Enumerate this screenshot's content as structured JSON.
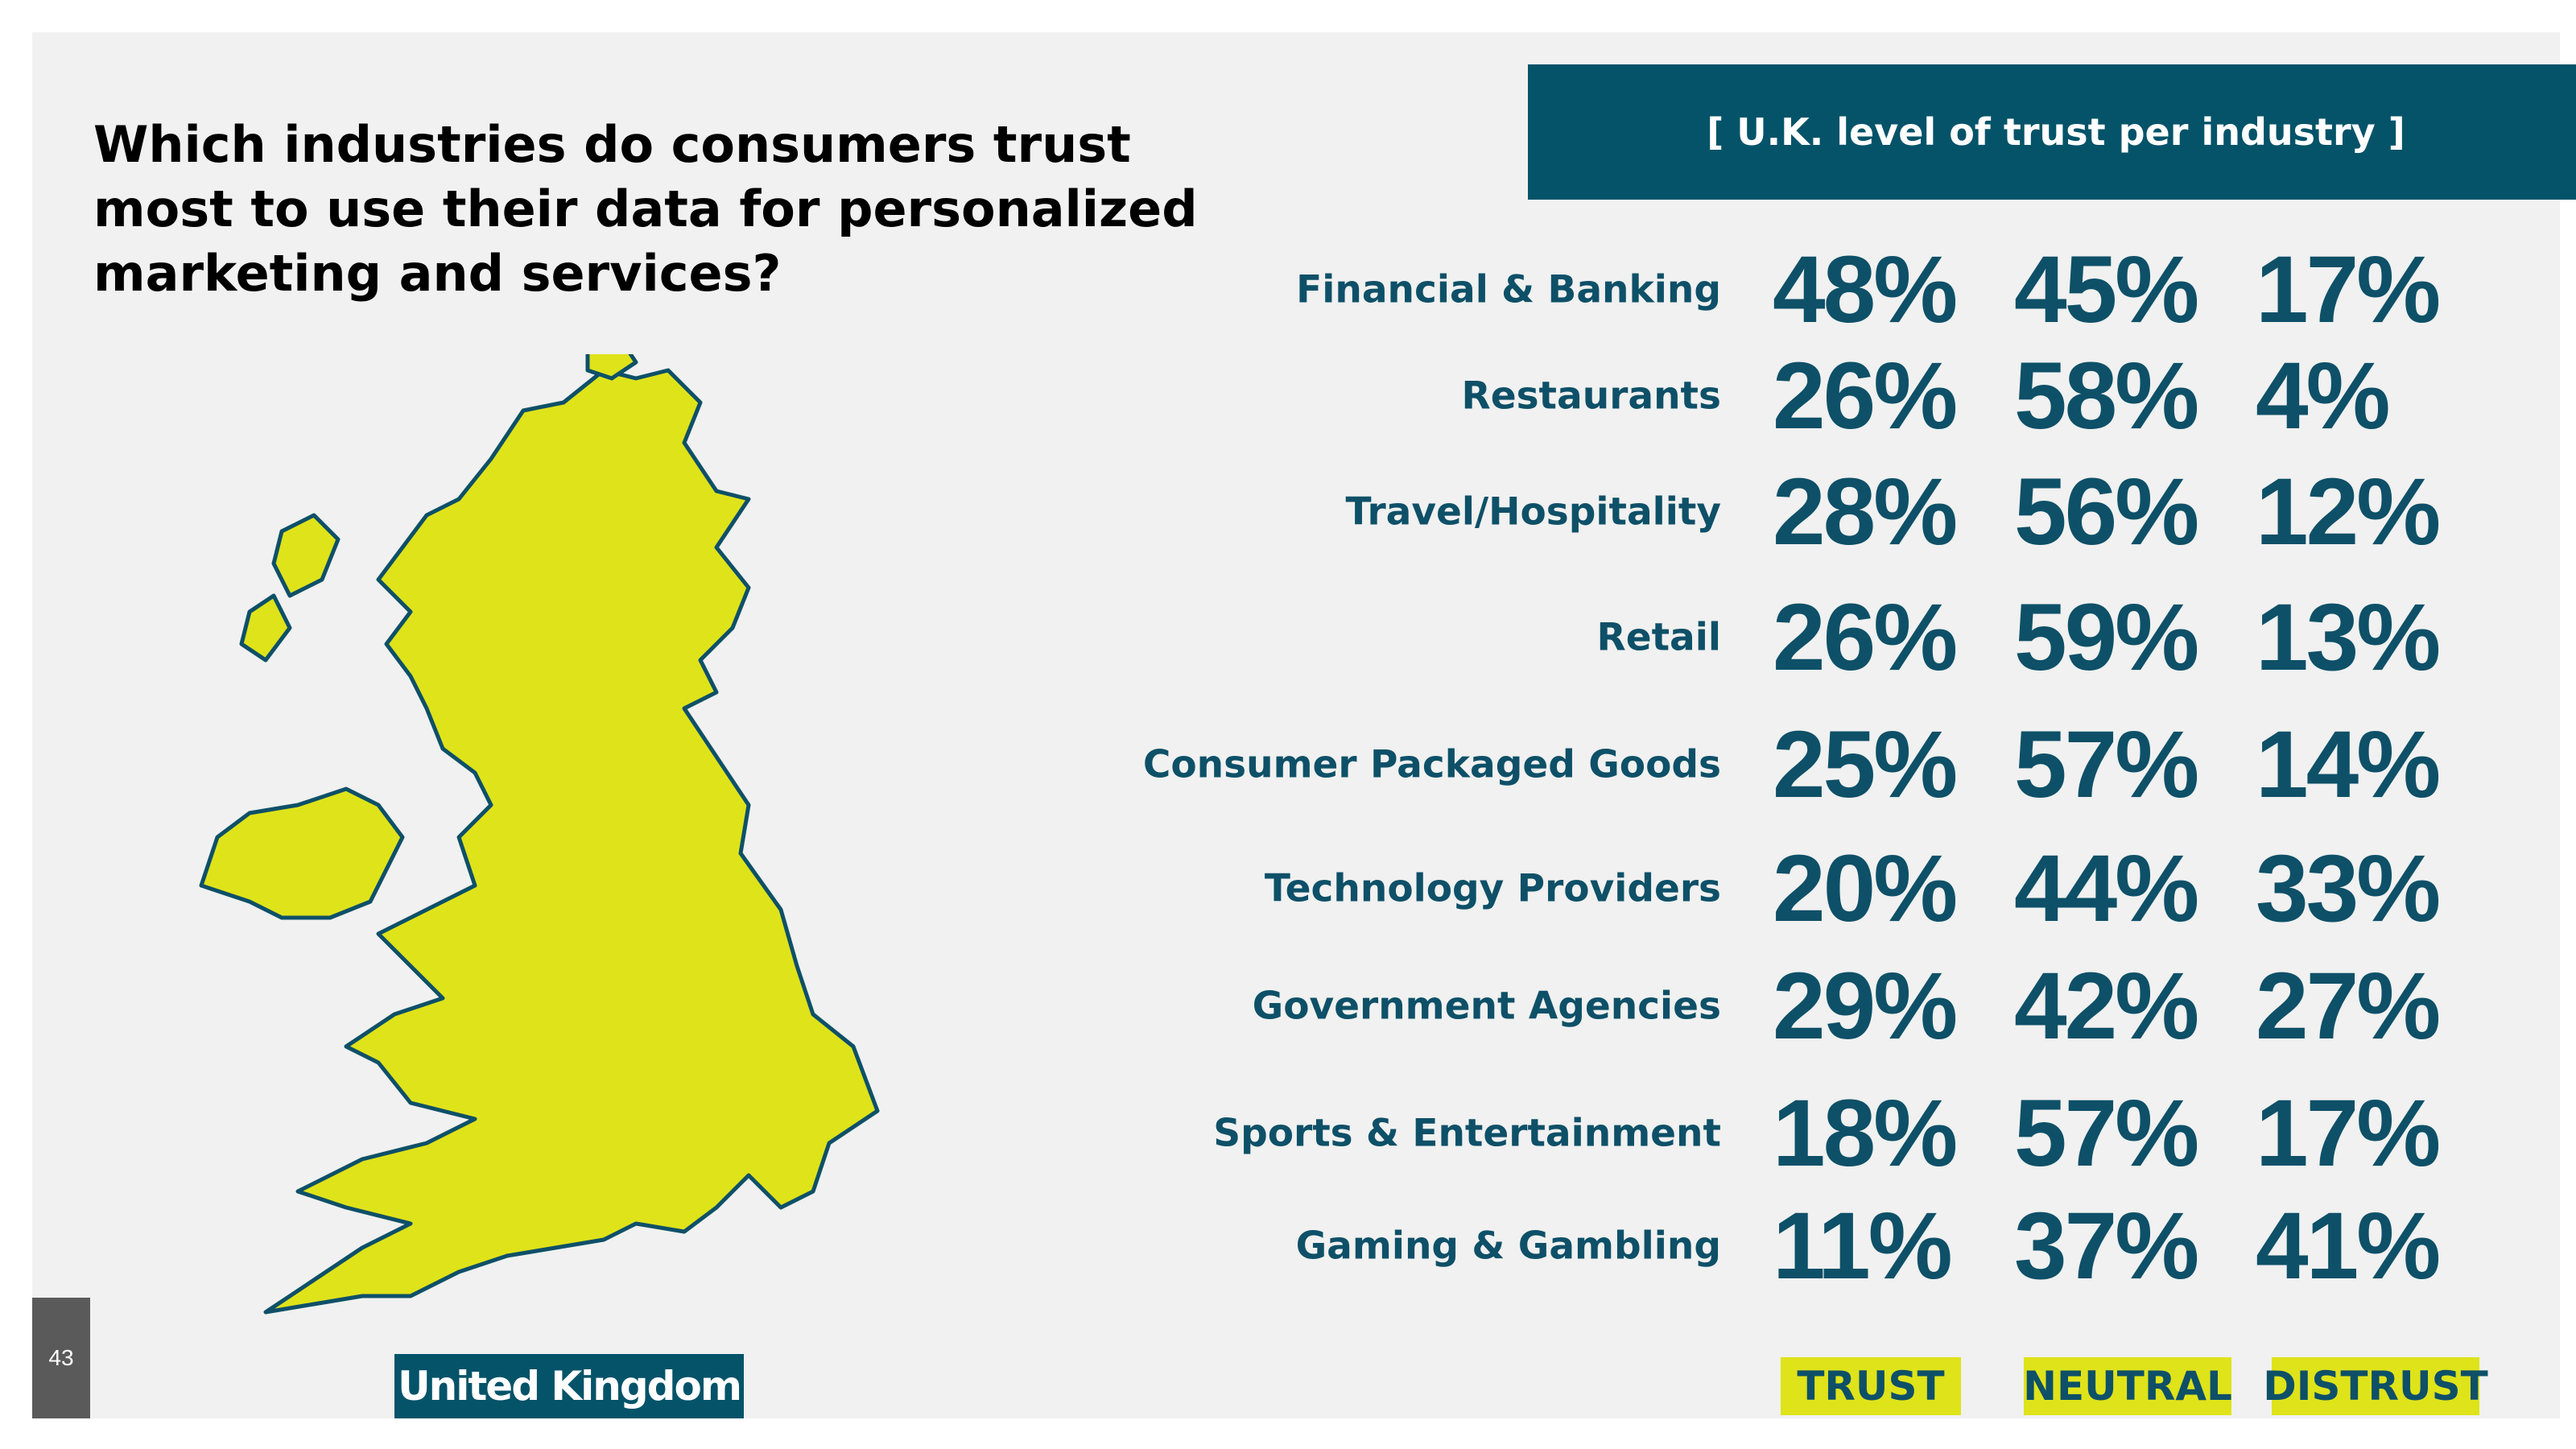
{
  "title": "Which industries do consumers trust most to use their data for personalized marketing and services?",
  "header": "[ U.K. level of trust per industry ]",
  "country_label": "United Kingdom",
  "page_number": "43",
  "colors": {
    "accent": "#045369",
    "highlight": "#dfe31a",
    "text": "#0e5068",
    "background": "#f0f1f0"
  },
  "chart_data": {
    "type": "table",
    "title": "[ U.K. level of trust per industry ]",
    "columns": [
      "TRUST",
      "NEUTRAL",
      "DISTRUST"
    ],
    "rows": [
      {
        "industry": "Financial & Banking",
        "values": [
          "48%",
          "45%",
          "17%"
        ]
      },
      {
        "industry": "Restaurants",
        "values": [
          "26%",
          "58%",
          "4%"
        ]
      },
      {
        "industry": "Travel/Hospitality",
        "values": [
          "28%",
          "56%",
          "12%"
        ]
      },
      {
        "industry": "Retail",
        "values": [
          "26%",
          "59%",
          "13%"
        ]
      },
      {
        "industry": "Consumer Packaged Goods",
        "values": [
          "25%",
          "57%",
          "14%"
        ]
      },
      {
        "industry": "Technology Providers",
        "values": [
          "20%",
          "44%",
          "33%"
        ]
      },
      {
        "industry": "Government Agencies",
        "values": [
          "29%",
          "42%",
          "27%"
        ]
      },
      {
        "industry": "Sports & Entertainment",
        "values": [
          "18%",
          "57%",
          "17%"
        ]
      },
      {
        "industry": "Gaming & Gambling",
        "values": [
          "11%",
          "37%",
          "41%"
        ]
      }
    ]
  }
}
